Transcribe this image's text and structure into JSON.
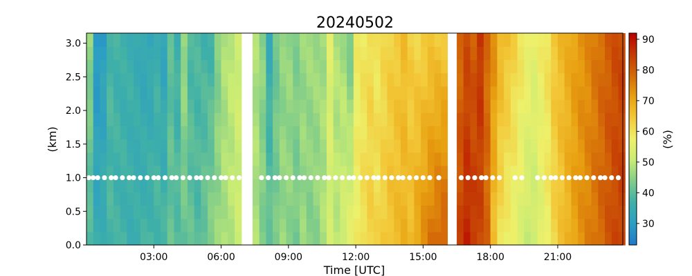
{
  "chart_data": {
    "type": "heatmap",
    "title": "20240502",
    "xlabel": "Time [UTC]",
    "ylabel": "(km)",
    "colorbar_label": "(%)",
    "x_range_hours": [
      0.0,
      23.9
    ],
    "y_range_km": [
      0.0,
      3.15
    ],
    "x_ticks": [
      {
        "hour": 3,
        "label": "03:00"
      },
      {
        "hour": 6,
        "label": "06:00"
      },
      {
        "hour": 9,
        "label": "09:00"
      },
      {
        "hour": 12,
        "label": "12:00"
      },
      {
        "hour": 15,
        "label": "15:00"
      },
      {
        "hour": 18,
        "label": "18:00"
      },
      {
        "hour": 21,
        "label": "21:00"
      }
    ],
    "y_ticks": [
      {
        "value": 0.0,
        "label": "0.0"
      },
      {
        "value": 0.5,
        "label": "0.5"
      },
      {
        "value": 1.0,
        "label": "1.0"
      },
      {
        "value": 1.5,
        "label": "1.5"
      },
      {
        "value": 2.0,
        "label": "2.0"
      },
      {
        "value": 2.5,
        "label": "2.5"
      },
      {
        "value": 3.0,
        "label": "3.0"
      }
    ],
    "colorbar_range": [
      23,
      92
    ],
    "colorbar_ticks": [
      {
        "value": 30,
        "label": "30"
      },
      {
        "value": 40,
        "label": "40"
      },
      {
        "value": 50,
        "label": "50"
      },
      {
        "value": 60,
        "label": "60"
      },
      {
        "value": 70,
        "label": "70"
      },
      {
        "value": 80,
        "label": "80"
      },
      {
        "value": 90,
        "label": "90"
      }
    ],
    "colormap": [
      "#1f78c8",
      "#2c9ec4",
      "#3fb0a8",
      "#7fcc8a",
      "#c8ec74",
      "#eef06a",
      "#f3c838",
      "#e8a010",
      "#d46a08",
      "#c43a04",
      "#b80000"
    ],
    "data_gaps_hours": [
      [
        7.0,
        7.4
      ],
      [
        16.1,
        16.5
      ]
    ],
    "columns_hours": [
      0.15,
      0.45,
      0.75,
      1.05,
      1.35,
      1.65,
      1.95,
      2.25,
      2.55,
      2.85,
      3.15,
      3.45,
      3.75,
      4.05,
      4.35,
      4.65,
      4.95,
      5.25,
      5.55,
      5.85,
      6.15,
      6.45,
      6.75,
      7.55,
      7.85,
      8.15,
      8.45,
      8.75,
      9.05,
      9.35,
      9.65,
      9.95,
      10.25,
      10.55,
      10.85,
      11.15,
      11.45,
      11.75,
      12.05,
      12.35,
      12.65,
      12.95,
      13.25,
      13.55,
      13.85,
      14.15,
      14.45,
      14.75,
      15.05,
      15.35,
      15.65,
      15.95,
      16.65,
      16.95,
      17.25,
      17.55,
      17.85,
      18.15,
      18.45,
      18.75,
      19.05,
      19.35,
      19.65,
      19.95,
      20.25,
      20.55,
      20.85,
      21.15,
      21.45,
      21.75,
      22.05,
      22.35,
      22.65,
      22.95,
      23.25,
      23.55,
      23.85
    ],
    "column_humidity_low_high": [
      [
        38,
        46
      ],
      [
        35,
        28
      ],
      [
        36,
        30
      ],
      [
        38,
        38
      ],
      [
        37,
        37
      ],
      [
        37,
        36
      ],
      [
        36,
        36
      ],
      [
        36,
        35
      ],
      [
        37,
        33
      ],
      [
        38,
        33
      ],
      [
        38,
        36
      ],
      [
        38,
        32
      ],
      [
        41,
        40
      ],
      [
        40,
        36
      ],
      [
        41,
        47
      ],
      [
        41,
        38
      ],
      [
        39,
        38
      ],
      [
        42,
        37
      ],
      [
        45,
        37
      ],
      [
        46,
        44
      ],
      [
        48,
        48
      ],
      [
        49,
        50
      ],
      [
        51,
        52
      ],
      [
        48,
        48
      ],
      [
        44,
        45
      ],
      [
        42,
        34
      ],
      [
        43,
        42
      ],
      [
        46,
        45
      ],
      [
        45,
        46
      ],
      [
        43,
        44
      ],
      [
        46,
        46
      ],
      [
        44,
        47
      ],
      [
        45,
        47
      ],
      [
        48,
        47
      ],
      [
        52,
        55
      ],
      [
        50,
        48
      ],
      [
        53,
        47
      ],
      [
        56,
        42
      ],
      [
        58,
        58
      ],
      [
        61,
        59
      ],
      [
        63,
        61
      ],
      [
        62,
        59
      ],
      [
        64,
        61
      ],
      [
        66,
        63
      ],
      [
        67,
        64
      ],
      [
        68,
        66
      ],
      [
        67,
        63
      ],
      [
        71,
        62
      ],
      [
        74,
        63
      ],
      [
        77,
        64
      ],
      [
        79,
        64
      ],
      [
        80,
        64
      ],
      [
        84,
        78
      ],
      [
        88,
        82
      ],
      [
        86,
        80
      ],
      [
        83,
        86
      ],
      [
        79,
        78
      ],
      [
        66,
        74
      ],
      [
        60,
        68
      ],
      [
        57,
        66
      ],
      [
        56,
        63
      ],
      [
        54,
        60
      ],
      [
        51,
        58
      ],
      [
        51,
        56
      ],
      [
        55,
        58
      ],
      [
        58,
        60
      ],
      [
        62,
        65
      ],
      [
        65,
        67
      ],
      [
        68,
        69
      ],
      [
        71,
        71
      ],
      [
        73,
        73
      ],
      [
        75,
        74
      ],
      [
        77,
        76
      ],
      [
        79,
        78
      ],
      [
        81,
        80
      ],
      [
        83,
        82
      ],
      [
        84,
        83
      ]
    ],
    "marker_series": {
      "height_km": 1.0,
      "hours": [
        0.1,
        0.3,
        0.5,
        0.8,
        1.1,
        1.3,
        1.6,
        1.9,
        2.1,
        2.4,
        2.7,
        3.0,
        3.2,
        3.5,
        3.8,
        4.0,
        4.3,
        4.6,
        4.9,
        5.1,
        5.4,
        5.7,
        6.0,
        6.2,
        6.5,
        6.8,
        7.8,
        8.1,
        8.4,
        8.6,
        8.9,
        9.2,
        9.5,
        9.7,
        10.0,
        10.3,
        10.6,
        10.8,
        11.1,
        11.4,
        11.7,
        11.9,
        12.2,
        12.5,
        12.8,
        13.0,
        13.3,
        13.6,
        13.9,
        14.1,
        14.4,
        14.7,
        15.0,
        15.3,
        15.7,
        16.7,
        17.0,
        17.3,
        17.6,
        17.8,
        18.1,
        18.4,
        19.1,
        19.4,
        20.1,
        20.4,
        20.7,
        20.9,
        21.2,
        21.5,
        21.8,
        22.0,
        22.3,
        22.6,
        22.9,
        23.1,
        23.4,
        23.7
      ]
    }
  }
}
